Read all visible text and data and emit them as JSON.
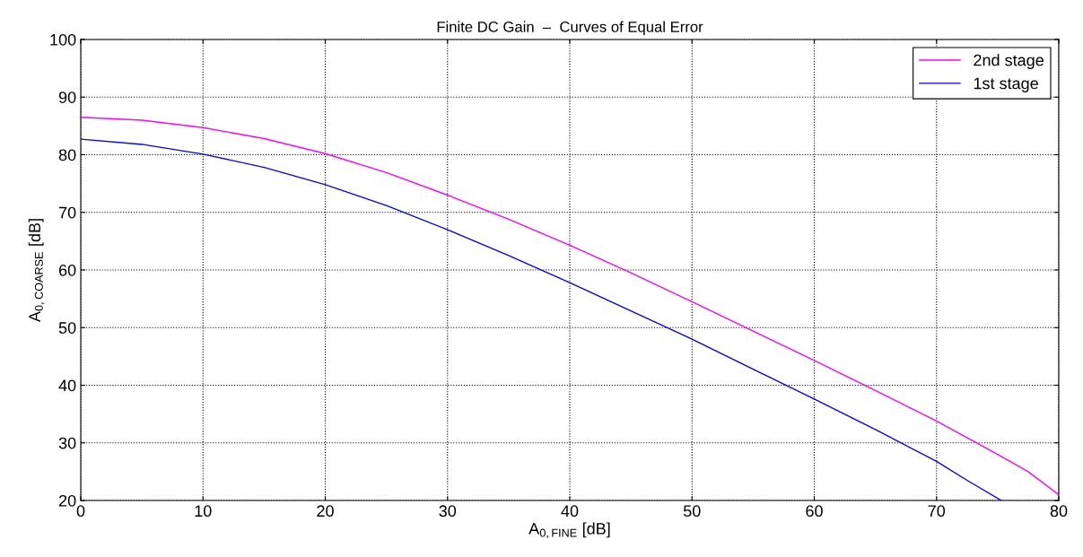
{
  "chart_data": {
    "type": "line",
    "title": "Finite DC Gain  –  Curves of Equal Error",
    "xlabel": "A$_{0,FINE}$ [dB]",
    "ylabel": "A$_{0,COARSE}$ [dB]",
    "xlim": [
      0,
      80
    ],
    "ylim": [
      20,
      100
    ],
    "xticks": [
      0,
      10,
      20,
      30,
      40,
      50,
      60,
      70,
      80
    ],
    "yticks": [
      20,
      30,
      40,
      50,
      60,
      70,
      80,
      90,
      100
    ],
    "grid": true,
    "legend": "top right",
    "series": [
      {
        "name": "2nd stage",
        "color": "#ff00ff",
        "x": [
          0,
          5,
          10,
          15,
          20,
          25,
          30,
          35,
          40,
          45,
          50,
          55,
          60,
          65,
          70,
          75,
          77.5,
          80
        ],
        "values": [
          86.5,
          86,
          84.7,
          82.8,
          80.2,
          76.9,
          73,
          68.8,
          64.3,
          59.5,
          54.5,
          49.4,
          44.3,
          39.1,
          33.8,
          28,
          25,
          21
        ]
      },
      {
        "name": "1st stage",
        "color": "#0000ff",
        "x": [
          0,
          5,
          10,
          15,
          20,
          25,
          30,
          35,
          40,
          45,
          50,
          55,
          60,
          65,
          70,
          72.5,
          75.3
        ],
        "values": [
          82.7,
          81.8,
          80.1,
          77.8,
          74.8,
          71.2,
          67,
          62.5,
          57.8,
          52.9,
          48,
          42.8,
          37.6,
          32.3,
          26.8,
          23.5,
          20
        ]
      }
    ]
  }
}
